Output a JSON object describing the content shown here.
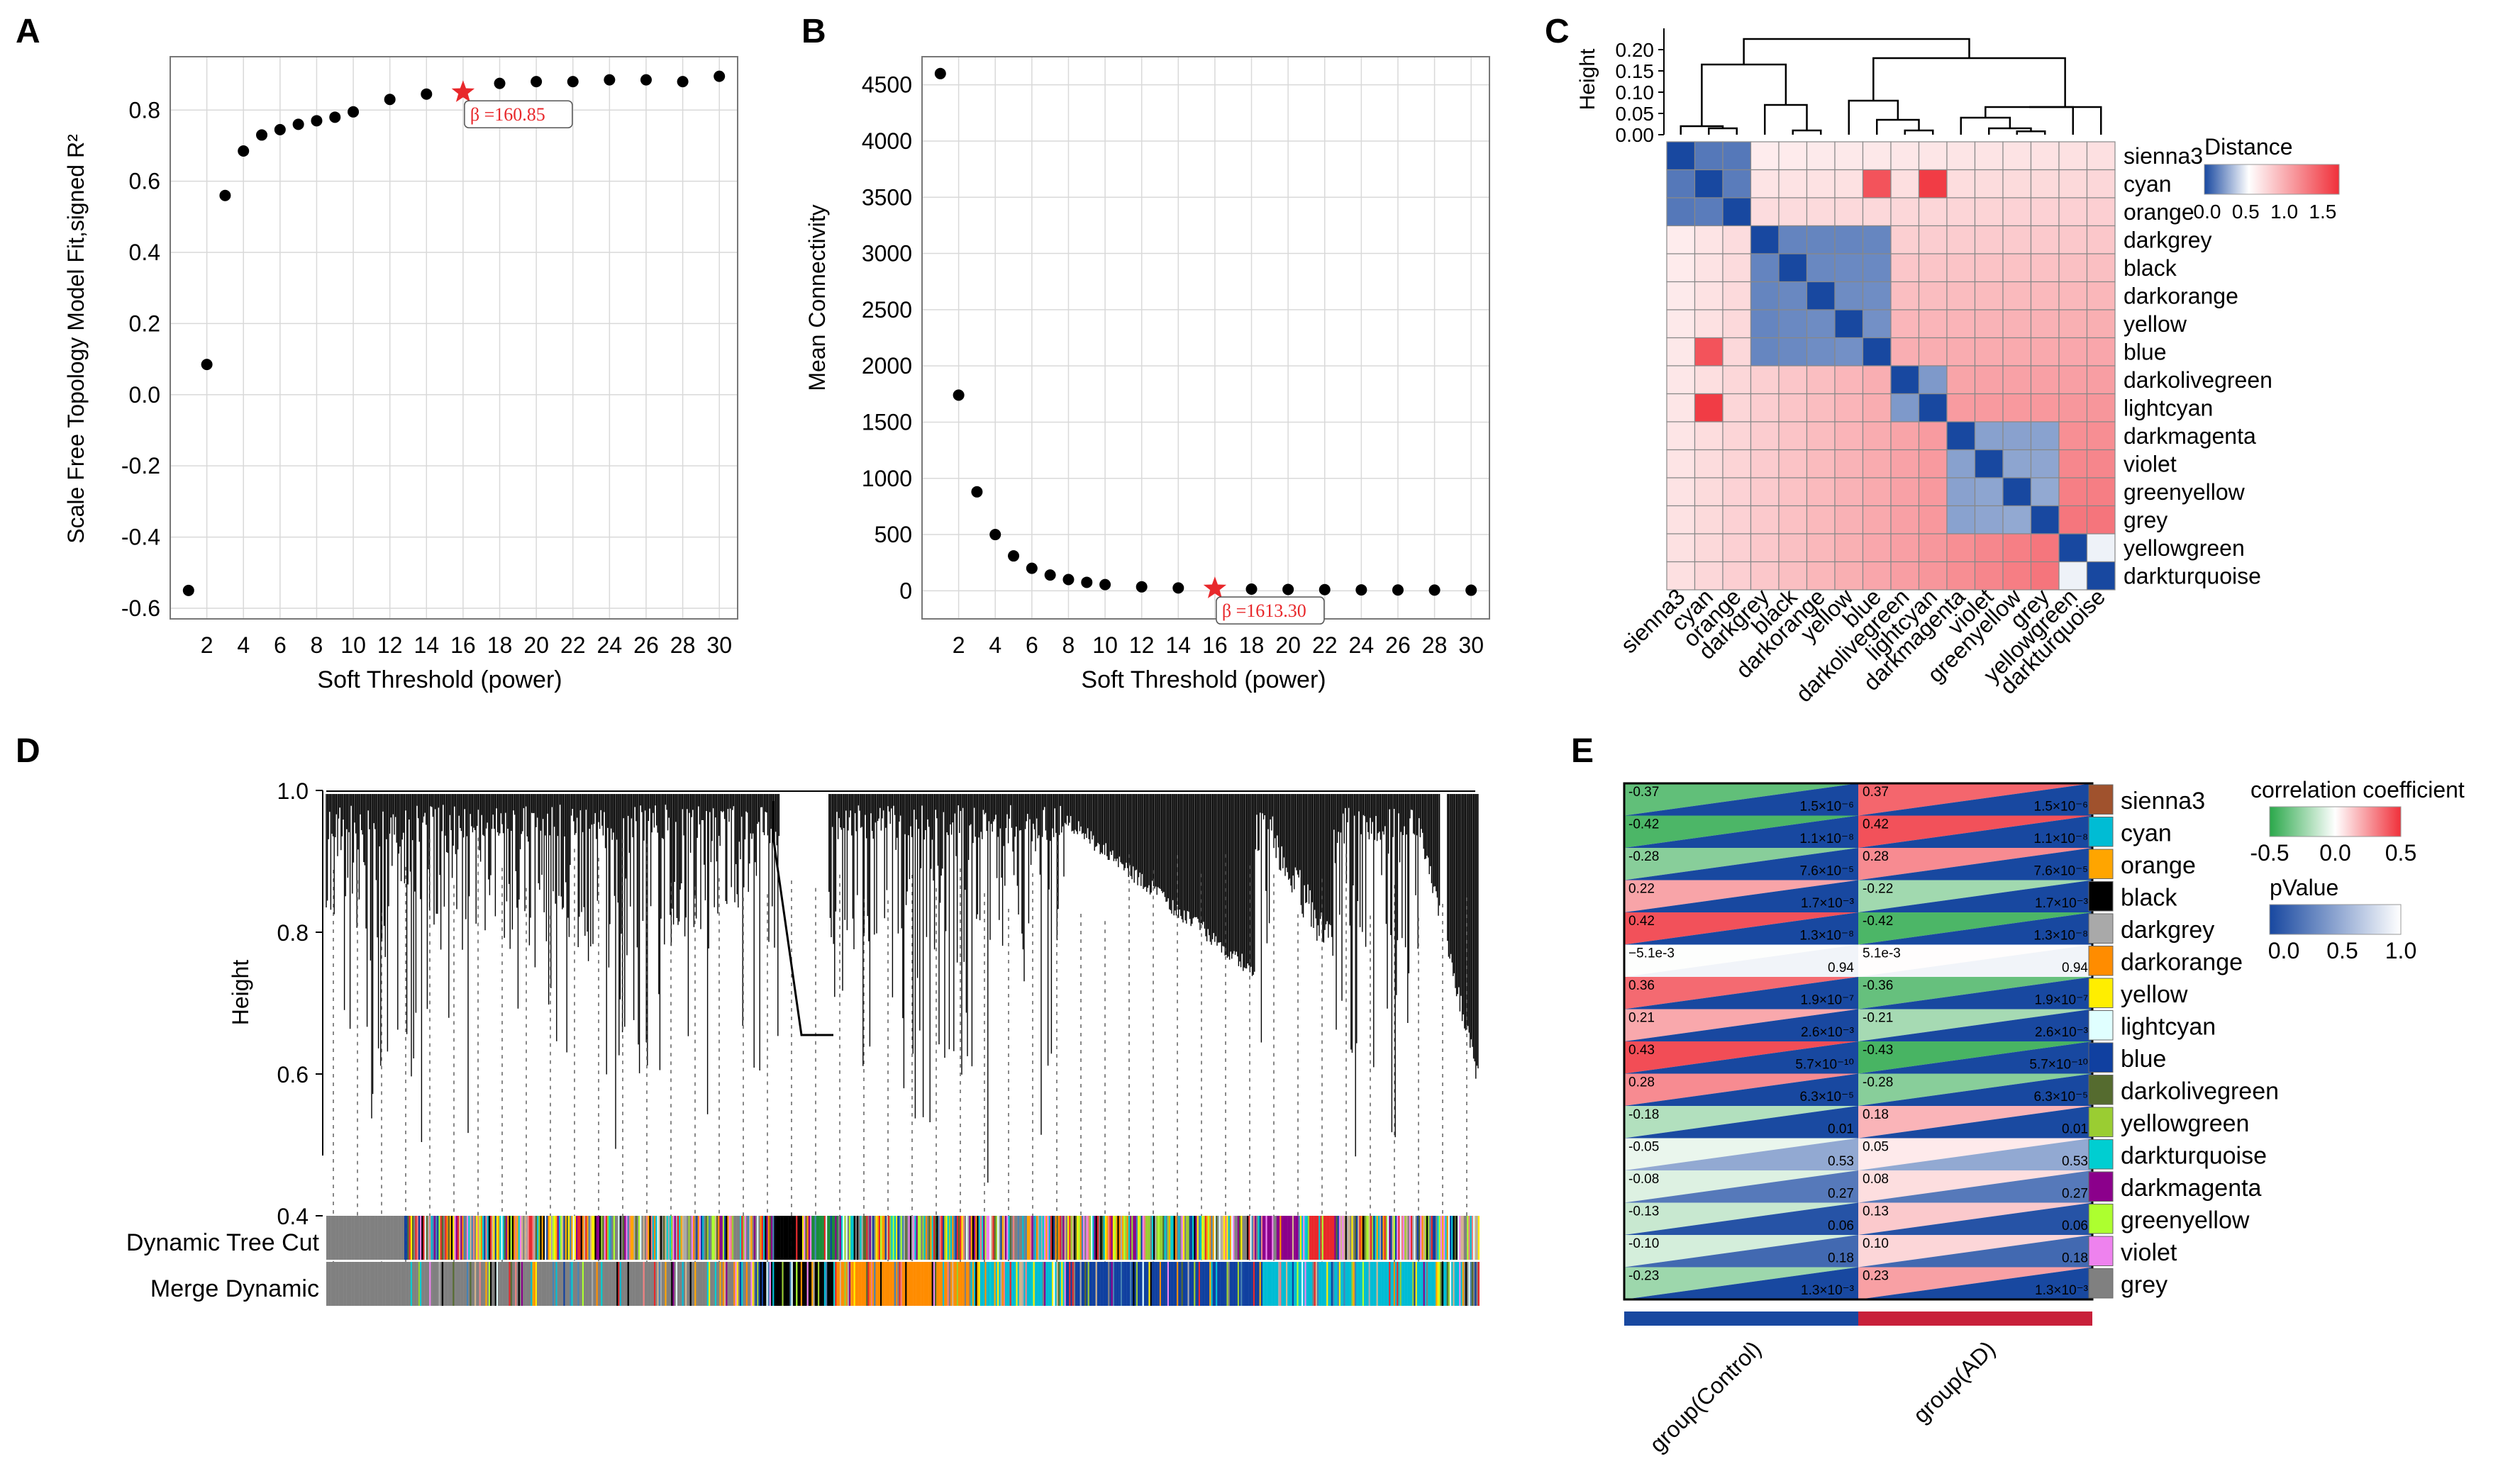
{
  "panels": {
    "a": "A",
    "b": "B",
    "c": "C",
    "d": "D",
    "e": "E"
  },
  "colors": {
    "point": "#000000",
    "star": "#e8282b",
    "grid": "#d9d9d9",
    "frame": "#777777",
    "neg": "#1848a0",
    "pos": "#f0303a",
    "green": "#2aa84a"
  },
  "chart_data": [
    {
      "id": "A",
      "type": "scatter",
      "title": "",
      "xlabel": "Soft Threshold (power)",
      "ylabel": "Scale Free Topology Model Fit,signed R²",
      "xlim": [
        0,
        31
      ],
      "ylim": [
        -0.63,
        0.95
      ],
      "xticks": [
        2,
        4,
        6,
        8,
        10,
        12,
        14,
        16,
        18,
        20,
        22,
        24,
        26,
        28,
        30
      ],
      "xtick_labels": [
        "2",
        "4",
        "6",
        "8",
        "10",
        "12",
        "14",
        "16",
        "18",
        "20",
        "22",
        "24",
        "26",
        "28",
        "30"
      ],
      "yticks": [
        -0.6,
        -0.4,
        -0.2,
        0.0,
        0.2,
        0.4,
        0.6,
        0.8
      ],
      "ytick_labels": [
        "-0.6",
        "-0.4",
        "-0.2",
        "0.0",
        "0.2",
        "0.4",
        "0.6",
        "0.8"
      ],
      "x": [
        1,
        2,
        3,
        4,
        5,
        6,
        7,
        8,
        9,
        10,
        12,
        14,
        18,
        20,
        22,
        24,
        26,
        28,
        30
      ],
      "y": [
        -0.55,
        0.085,
        0.56,
        0.685,
        0.73,
        0.745,
        0.76,
        0.77,
        0.78,
        0.795,
        0.83,
        0.845,
        0.875,
        0.88,
        0.88,
        0.885,
        0.885,
        0.88,
        0.895
      ],
      "highlight": {
        "x": 16,
        "y": 0.85,
        "label": "β =160.85"
      }
    },
    {
      "id": "B",
      "type": "scatter",
      "title": "",
      "xlabel": "Soft Threshold (power)",
      "ylabel": "Mean Connectivity",
      "xlim": [
        0,
        31
      ],
      "ylim": [
        -250,
        4750
      ],
      "xticks": [
        2,
        4,
        6,
        8,
        10,
        12,
        14,
        16,
        18,
        20,
        22,
        24,
        26,
        28,
        30
      ],
      "xtick_labels": [
        "2",
        "4",
        "6",
        "8",
        "10",
        "12",
        "14",
        "16",
        "18",
        "20",
        "22",
        "24",
        "26",
        "28",
        "30"
      ],
      "yticks": [
        0,
        500,
        1000,
        1500,
        2000,
        2500,
        3000,
        3500,
        4000,
        4500
      ],
      "ytick_labels": [
        "0",
        "500",
        "1000",
        "1500",
        "2000",
        "2500",
        "3000",
        "3500",
        "4000",
        "4500"
      ],
      "x": [
        1,
        2,
        3,
        4,
        5,
        6,
        7,
        8,
        9,
        10,
        12,
        14,
        18,
        20,
        22,
        24,
        26,
        28,
        30
      ],
      "y": [
        4600,
        1740,
        880,
        500,
        310,
        200,
        140,
        100,
        75,
        55,
        35,
        25,
        15,
        12,
        10,
        8,
        7,
        6,
        5
      ],
      "highlight": {
        "x": 16,
        "y": 20,
        "label": "β =1613.30"
      }
    },
    {
      "id": "C",
      "type": "heatmap",
      "title": "",
      "modules": [
        "sienna3",
        "cyan",
        "orange",
        "darkgrey",
        "black",
        "darkorange",
        "yellow",
        "blue",
        "darkolivegreen",
        "lightcyan",
        "darkmagenta",
        "violet",
        "greenyellow",
        "grey",
        "yellowgreen",
        "darkturquoise"
      ],
      "dendro_ylabel": "Height",
      "dendro_yticks": [
        "0.00",
        "0.05",
        "0.10",
        "0.15",
        "0.20"
      ],
      "legend_title": "Distance",
      "legend_ticks": [
        "0.0",
        "0.5",
        "1.0",
        "1.5"
      ]
    },
    {
      "id": "D",
      "type": "dendrogram",
      "title": "",
      "ylabel": "Height",
      "yticks": [
        "0.4",
        "0.6",
        "0.8",
        "1.0"
      ],
      "color_bars": [
        "Dynamic Tree Cut",
        "Merge Dynamic"
      ]
    },
    {
      "id": "E",
      "type": "heatmap",
      "title": "",
      "columns": [
        "group(Control)",
        "group(AD)"
      ],
      "modules": [
        "sienna3",
        "cyan",
        "orange",
        "black",
        "darkgrey",
        "darkorange",
        "yellow",
        "lightcyan",
        "blue",
        "darkolivegreen",
        "yellowgreen",
        "darkturquoise",
        "darkmagenta",
        "greenyellow",
        "violet",
        "grey"
      ],
      "module_colors": [
        "#a0522d",
        "#00bcd4",
        "#ffa500",
        "#000000",
        "#a9a9a9",
        "#ff8c00",
        "#ffee00",
        "#e0ffff",
        "#1040a0",
        "#556b2f",
        "#9acd32",
        "#00ced1",
        "#8b008b",
        "#adff2f",
        "#ee82ee",
        "#808080"
      ],
      "corr_control": [
        "-0.37",
        "-0.42",
        "-0.28",
        "0.22",
        "0.42",
        "−5.1e-3",
        "0.36",
        "0.21",
        "0.43",
        "0.28",
        "-0.18",
        "-0.05",
        "-0.08",
        "-0.13",
        "-0.10",
        "-0.23"
      ],
      "corr_ad": [
        "0.37",
        "0.42",
        "0.28",
        "-0.22",
        "-0.42",
        "5.1e-3",
        "-0.36",
        "-0.21",
        "-0.43",
        "-0.28",
        "0.18",
        "0.05",
        "0.08",
        "0.13",
        "0.10",
        "0.23"
      ],
      "pvalues": [
        "1.5×10⁻⁶",
        "1.1×10⁻⁸",
        "7.6×10⁻⁵",
        "1.7×10⁻³",
        "1.3×10⁻⁸",
        "0.94",
        "1.9×10⁻⁷",
        "2.6×10⁻³",
        "5.7×10⁻¹⁰",
        "6.3×10⁻⁵",
        "0.01",
        "0.53",
        "0.27",
        "0.06",
        "0.18",
        "1.3×10⁻³"
      ],
      "legend_corr_title": "correlation coefficient",
      "legend_corr_ticks": [
        "-0.5",
        "0.0",
        "0.5"
      ],
      "legend_p_title": "pValue",
      "legend_p_ticks": [
        "0.0",
        "0.5",
        "1.0"
      ]
    }
  ]
}
